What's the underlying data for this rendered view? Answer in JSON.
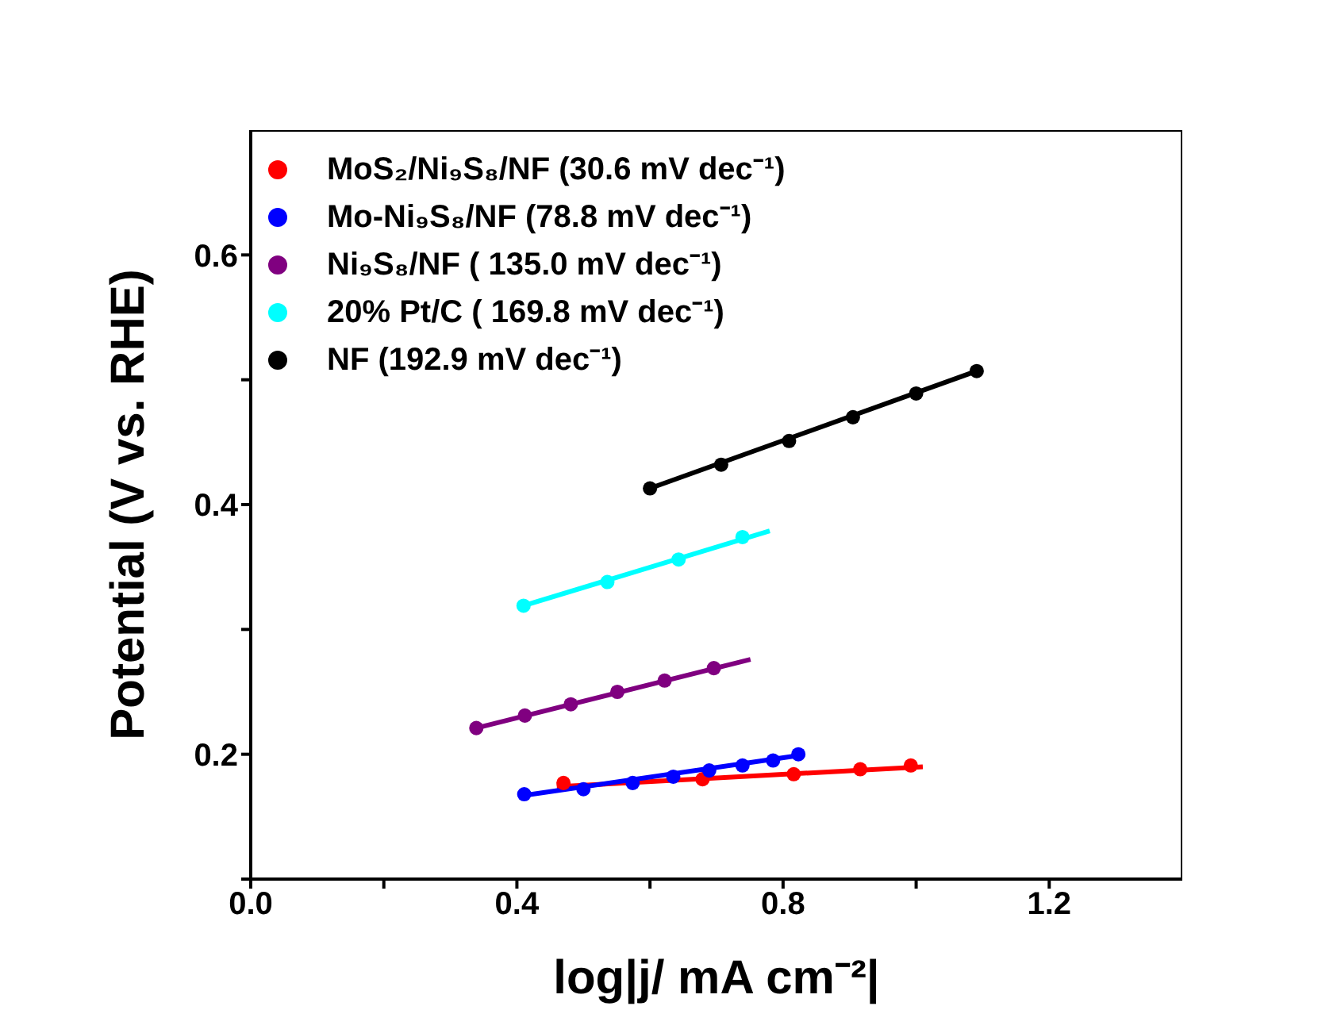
{
  "chart_data": {
    "type": "scatter",
    "xlabel": "log|j/ mA cm⁻²|",
    "ylabel": "Potential (V vs. RHE)",
    "xlim": [
      0,
      1.4
    ],
    "ylim": [
      0.1,
      0.7
    ],
    "xticks": [
      {
        "value": 0,
        "label": "0.0"
      },
      {
        "value": 0.2,
        "label": null
      },
      {
        "value": 0.4,
        "label": "0.4"
      },
      {
        "value": 0.6,
        "label": null
      },
      {
        "value": 0.8,
        "label": "0.8"
      },
      {
        "value": 1.0,
        "label": null
      },
      {
        "value": 1.2,
        "label": "1.2"
      }
    ],
    "yticks": [
      {
        "value": 0.1,
        "label": null
      },
      {
        "value": 0.2,
        "label": "0.2"
      },
      {
        "value": 0.3,
        "label": null
      },
      {
        "value": 0.4,
        "label": "0.4"
      },
      {
        "value": 0.5,
        "label": null
      },
      {
        "value": 0.6,
        "label": "0.6"
      }
    ],
    "grid": false,
    "legend": "top left",
    "marker": "circle",
    "series": [
      {
        "name": "MoS₂/Ni₉S₈/NF (30.6 mV dec⁻¹)",
        "color": "#ff0000",
        "x": [
          0.47,
          0.679,
          0.816,
          0.916,
          0.992
        ],
        "values": [
          0.177,
          0.18,
          0.184,
          0.188,
          0.191
        ]
      },
      {
        "name": "Mo-Ni₉S₈/NF (78.8 mV dec⁻¹)",
        "color": "#0000ff",
        "x": [
          0.411,
          0.5,
          0.574,
          0.635,
          0.689,
          0.739,
          0.785,
          0.823
        ],
        "values": [
          0.168,
          0.172,
          0.177,
          0.182,
          0.187,
          0.191,
          0.195,
          0.2
        ]
      },
      {
        "name": "Ni₉S₈/NF ( 135.0 mV dec⁻¹)",
        "color": "#800080",
        "x": [
          0.339,
          0.412,
          0.481,
          0.551,
          0.622,
          0.696
        ],
        "values": [
          0.221,
          0.231,
          0.24,
          0.25,
          0.259,
          0.269
        ]
      },
      {
        "name": "20% Pt/C ( 169.8 mV dec⁻¹)",
        "color": "#00ffff",
        "x": [
          0.41,
          0.536,
          0.643,
          0.739
        ],
        "values": [
          0.319,
          0.338,
          0.356,
          0.374
        ]
      },
      {
        "name": "NF (192.9 mV dec⁻¹)",
        "color": "#000000",
        "x": [
          0.6,
          0.707,
          0.809,
          0.905,
          1.0,
          1.091
        ],
        "values": [
          0.413,
          0.432,
          0.451,
          0.47,
          0.489,
          0.507
        ]
      },
      {
        "type": "line",
        "color": "#ff0000",
        "marker": "none",
        "x": [
          0.46,
          1.01
        ],
        "values": [
          0.174,
          0.19
        ]
      },
      {
        "type": "line",
        "color": "#0000ff",
        "marker": "none",
        "x": [
          0.411,
          0.823
        ],
        "values": [
          0.167,
          0.199
        ]
      },
      {
        "type": "line",
        "color": "#800080",
        "marker": "none",
        "x": [
          0.339,
          0.751
        ],
        "values": [
          0.221,
          0.276
        ]
      },
      {
        "type": "line",
        "color": "#00ffff",
        "marker": "none",
        "x": [
          0.41,
          0.78
        ],
        "values": [
          0.319,
          0.379
        ]
      },
      {
        "type": "line",
        "color": "#000000",
        "marker": "none",
        "x": [
          0.6,
          1.091
        ],
        "values": [
          0.413,
          0.507
        ]
      }
    ]
  }
}
